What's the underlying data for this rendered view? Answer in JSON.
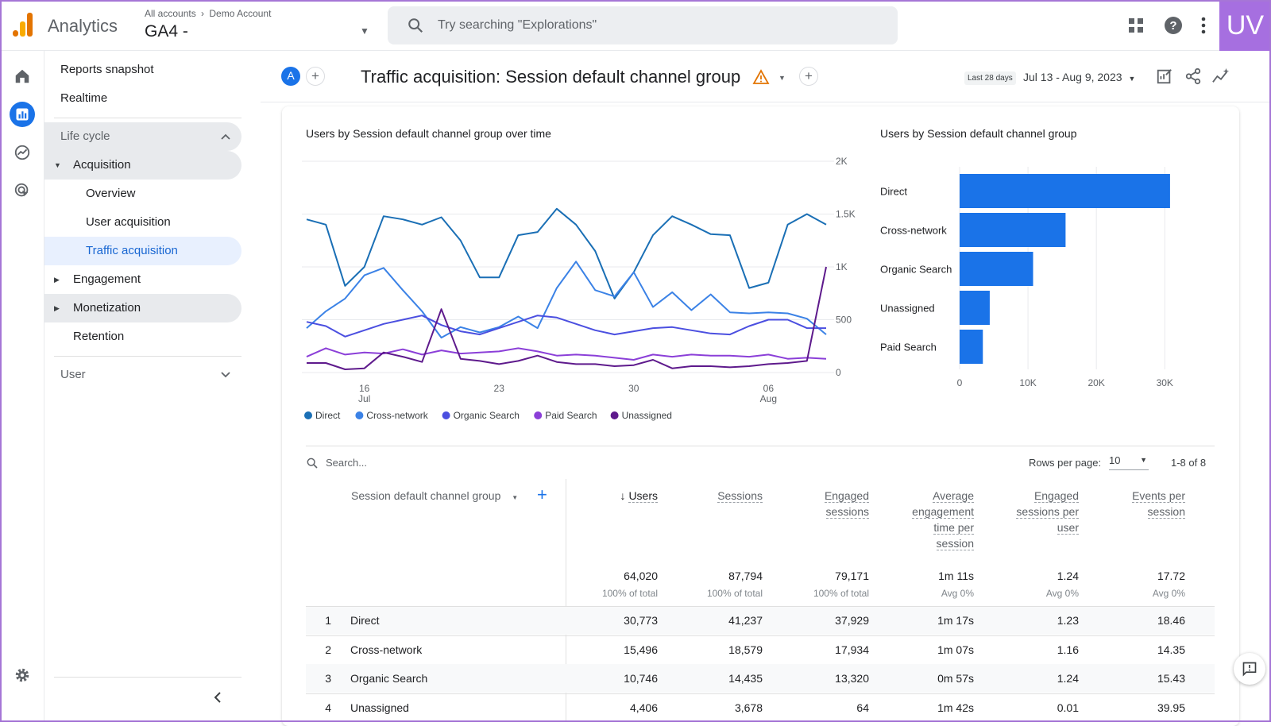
{
  "topbar": {
    "app_name": "Analytics",
    "breadcrumb_all": "All accounts",
    "breadcrumb_account": "Demo Account",
    "property": "GA4 -",
    "search_placeholder": "Try searching \"Explorations\"",
    "badge": "UV"
  },
  "nav": {
    "reports_snapshot": "Reports snapshot",
    "realtime": "Realtime",
    "lifecycle": "Life cycle",
    "acquisition": "Acquisition",
    "overview": "Overview",
    "user_acquisition": "User acquisition",
    "traffic_acquisition": "Traffic acquisition",
    "engagement": "Engagement",
    "monetization": "Monetization",
    "retention": "Retention",
    "user": "User"
  },
  "header": {
    "avatar_letter": "A",
    "title": "Traffic acquisition: Session default channel group",
    "date_badge": "Last 28 days",
    "date_range": "Jul 13 - Aug 9, 2023"
  },
  "colors": {
    "accent": "#1a73e8",
    "purple_frame": "#a676d6"
  },
  "chart_data": [
    {
      "type": "line",
      "title": "Users by Session default channel group over time",
      "x_ticks": [
        "16 Jul",
        "23",
        "30",
        "06 Aug"
      ],
      "y_ticks": [
        "0",
        "500",
        "1K",
        "1.5K",
        "2K"
      ],
      "ylim": [
        0,
        2000
      ],
      "x": [
        "Jul 13",
        "Jul 14",
        "Jul 15",
        "Jul 16",
        "Jul 17",
        "Jul 18",
        "Jul 19",
        "Jul 20",
        "Jul 21",
        "Jul 22",
        "Jul 23",
        "Jul 24",
        "Jul 25",
        "Jul 26",
        "Jul 27",
        "Jul 28",
        "Jul 29",
        "Jul 30",
        "Jul 31",
        "Aug 1",
        "Aug 2",
        "Aug 3",
        "Aug 4",
        "Aug 5",
        "Aug 6",
        "Aug 7",
        "Aug 8",
        "Aug 9"
      ],
      "series": [
        {
          "name": "Direct",
          "color": "#1a6fb5",
          "values": [
            1450,
            1400,
            820,
            1000,
            1480,
            1450,
            1400,
            1470,
            1250,
            900,
            900,
            1300,
            1330,
            1550,
            1400,
            1150,
            700,
            950,
            1300,
            1480,
            1400,
            1310,
            1300,
            800,
            850,
            1400,
            1500,
            1400
          ]
        },
        {
          "name": "Cross-network",
          "color": "#3b82e6",
          "values": [
            420,
            580,
            700,
            920,
            990,
            780,
            580,
            330,
            430,
            380,
            430,
            530,
            420,
            800,
            1050,
            780,
            720,
            950,
            620,
            760,
            590,
            740,
            570,
            560,
            570,
            560,
            510,
            360
          ]
        },
        {
          "name": "Organic Search",
          "color": "#4b4fe0",
          "values": [
            480,
            440,
            340,
            400,
            460,
            500,
            540,
            450,
            390,
            360,
            420,
            480,
            540,
            520,
            460,
            400,
            360,
            390,
            420,
            430,
            400,
            370,
            360,
            440,
            500,
            500,
            420,
            420
          ]
        },
        {
          "name": "Paid Search",
          "color": "#8b3fd8",
          "values": [
            150,
            230,
            170,
            190,
            180,
            220,
            170,
            210,
            180,
            190,
            200,
            230,
            200,
            160,
            170,
            160,
            140,
            120,
            170,
            150,
            170,
            160,
            160,
            150,
            170,
            130,
            140,
            130
          ]
        },
        {
          "name": "Unassigned",
          "color": "#5e1a8c",
          "values": [
            90,
            90,
            30,
            40,
            190,
            150,
            100,
            600,
            130,
            110,
            80,
            110,
            160,
            100,
            80,
            80,
            60,
            70,
            120,
            40,
            60,
            60,
            50,
            60,
            80,
            90,
            110,
            1000
          ]
        }
      ]
    },
    {
      "type": "bar",
      "orientation": "horizontal",
      "title": "Users by Session default channel group",
      "categories": [
        "Direct",
        "Cross-network",
        "Organic Search",
        "Unassigned",
        "Paid Search"
      ],
      "values": [
        30773,
        15496,
        10746,
        4406,
        3400
      ],
      "x_ticks": [
        "0",
        "10K",
        "20K",
        "30K"
      ],
      "xlim": [
        0,
        35000
      ],
      "color": "#1a73e8"
    }
  ],
  "table": {
    "search_placeholder": "Search...",
    "rows_per_page_label": "Rows per page:",
    "rows_per_page_value": "10",
    "pagination": "1-8 of 8",
    "dimension_header": "Session default channel group",
    "headers": {
      "users": "Users",
      "sessions": "Sessions",
      "engaged_sessions": "Engaged sessions",
      "avg_engagement_time": "Average engagement time per session",
      "engaged_sessions_per_user": "Engaged sessions per user",
      "events_per_session": "Events per session"
    },
    "totals": {
      "users": "64,020",
      "users_pct": "100% of total",
      "sessions": "87,794",
      "sessions_pct": "100% of total",
      "engaged_sessions": "79,171",
      "engaged_sessions_pct": "100% of total",
      "avg_engagement_time": "1m 11s",
      "avg_engagement_time_pct": "Avg 0%",
      "engaged_sessions_per_user": "1.24",
      "engaged_sessions_per_user_pct": "Avg 0%",
      "events_per_session": "17.72",
      "events_per_session_pct": "Avg 0%"
    },
    "rows": [
      {
        "rank": "1",
        "channel": "Direct",
        "users": "30,773",
        "sessions": "41,237",
        "engaged": "37,929",
        "avg_time": "1m 17s",
        "per_user": "1.23",
        "events": "18.46"
      },
      {
        "rank": "2",
        "channel": "Cross-network",
        "users": "15,496",
        "sessions": "18,579",
        "engaged": "17,934",
        "avg_time": "1m 07s",
        "per_user": "1.16",
        "events": "14.35"
      },
      {
        "rank": "3",
        "channel": "Organic Search",
        "users": "10,746",
        "sessions": "14,435",
        "engaged": "13,320",
        "avg_time": "0m 57s",
        "per_user": "1.24",
        "events": "15.43"
      },
      {
        "rank": "4",
        "channel": "Unassigned",
        "users": "4,406",
        "sessions": "3,678",
        "engaged": "64",
        "avg_time": "1m 42s",
        "per_user": "0.01",
        "events": "39.95"
      }
    ]
  }
}
